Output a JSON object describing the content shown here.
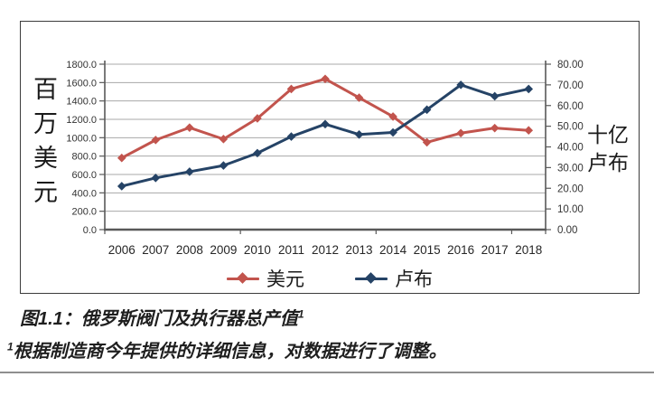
{
  "figure": {
    "caption_text": "图1.1：俄罗斯阀门及执行器总产值",
    "caption_sup": "1",
    "footnote_sup": "1",
    "footnote_text": "根据制造商今年提供的详细信息，对数据进行了调整。"
  },
  "chart_data": {
    "type": "line",
    "categories": [
      "2006",
      "2007",
      "2008",
      "2009",
      "2010",
      "2011",
      "2012",
      "2013",
      "2014",
      "2015",
      "2016",
      "2017",
      "2018"
    ],
    "series": [
      {
        "key": "usd",
        "name": "美元",
        "axis": "left",
        "color": "#c2544d",
        "values": [
          780,
          975,
          1110,
          985,
          1210,
          1530,
          1640,
          1435,
          1230,
          950,
          1050,
          1105,
          1080
        ]
      },
      {
        "key": "rub",
        "name": "卢布",
        "axis": "right",
        "color": "#254366",
        "values": [
          21,
          25,
          28,
          31,
          37,
          45,
          51,
          46,
          47,
          58,
          70,
          64.5,
          68
        ]
      }
    ],
    "left_axis": {
      "title": "百万美元",
      "min": 0,
      "max": 1800,
      "step": 200,
      "tick_labels": [
        "1800.0",
        "1600.0",
        "1400.0",
        "1200.0",
        "1000.0",
        "800.0",
        "600.0",
        "400.0",
        "200.0",
        "0.0"
      ]
    },
    "right_axis": {
      "title_line1": "十亿",
      "title_line2": "卢布",
      "min": 0,
      "max": 80,
      "step": 10,
      "tick_labels": [
        "80.00",
        "70.00",
        "60.00",
        "50.00",
        "40.00",
        "30.00",
        "20.00",
        "10.00",
        "0.00"
      ]
    },
    "legend_position": "bottom",
    "grid": true,
    "colors": {
      "gridline": "#a8a8a8",
      "axis_line": "#595959",
      "tick_text": "#333333",
      "border": "#3c3c3c"
    }
  }
}
